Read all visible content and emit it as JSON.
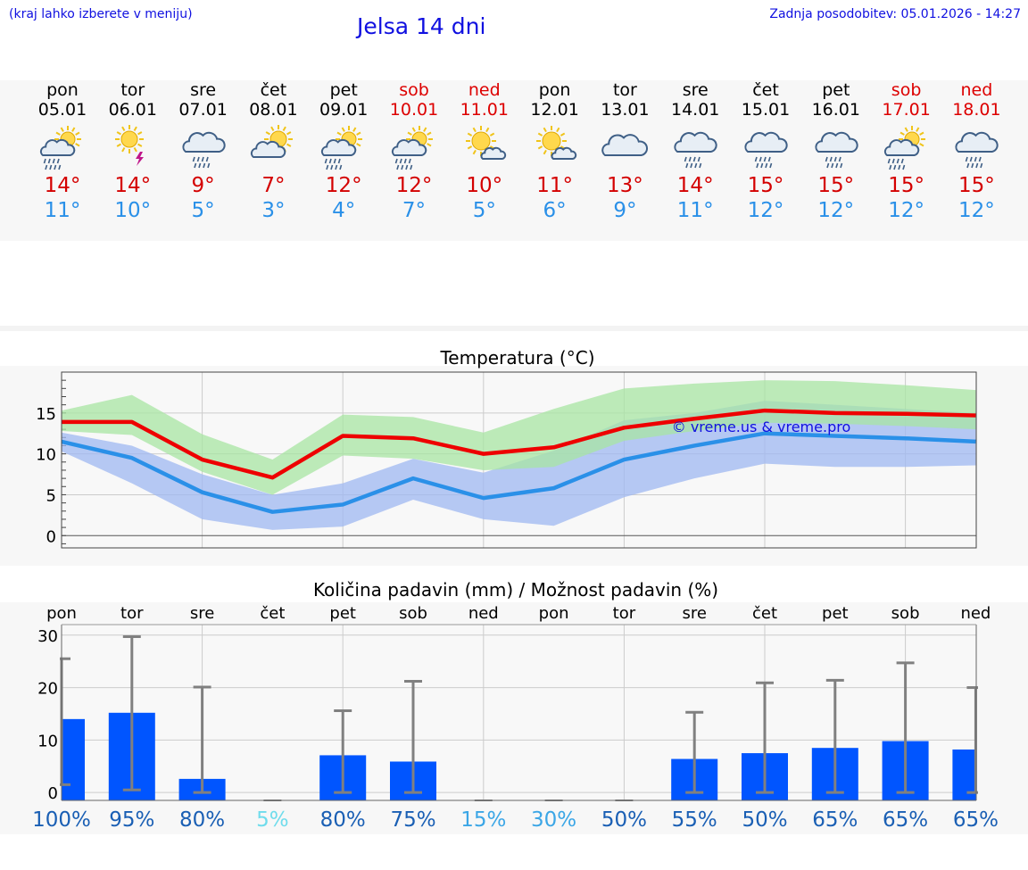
{
  "header": {
    "hint": "(kraj lahko izberete v meniju)",
    "title": "Jelsa 14 dni",
    "updated": "Zadnja posodobitev: 05.01.2026 - 14:27"
  },
  "forecast": [
    {
      "day": "pon",
      "date": "05.01",
      "weekend": false,
      "icon": "sun-cloud-rain-icon",
      "max": "14°",
      "min": "11°"
    },
    {
      "day": "tor",
      "date": "06.01",
      "weekend": false,
      "icon": "sun-thunder-icon",
      "max": "14°",
      "min": "10°"
    },
    {
      "day": "sre",
      "date": "07.01",
      "weekend": false,
      "icon": "cloud-rain-icon",
      "max": "9°",
      "min": "5°"
    },
    {
      "day": "čet",
      "date": "08.01",
      "weekend": false,
      "icon": "sun-cloud-icon",
      "max": "7°",
      "min": "3°"
    },
    {
      "day": "pet",
      "date": "09.01",
      "weekend": false,
      "icon": "sun-cloud-rain-icon",
      "max": "12°",
      "min": "4°"
    },
    {
      "day": "sob",
      "date": "10.01",
      "weekend": true,
      "icon": "sun-cloud-rain-icon",
      "max": "12°",
      "min": "7°"
    },
    {
      "day": "ned",
      "date": "11.01",
      "weekend": true,
      "icon": "sun-small-cloud-icon",
      "max": "10°",
      "min": "5°"
    },
    {
      "day": "pon",
      "date": "12.01",
      "weekend": false,
      "icon": "sun-small-cloud-icon",
      "max": "11°",
      "min": "6°"
    },
    {
      "day": "tor",
      "date": "13.01",
      "weekend": false,
      "icon": "cloud-icon",
      "max": "13°",
      "min": "9°"
    },
    {
      "day": "sre",
      "date": "14.01",
      "weekend": false,
      "icon": "cloud-rain-icon",
      "max": "14°",
      "min": "11°"
    },
    {
      "day": "čet",
      "date": "15.01",
      "weekend": false,
      "icon": "cloud-rain-icon",
      "max": "15°",
      "min": "12°"
    },
    {
      "day": "pet",
      "date": "16.01",
      "weekend": false,
      "icon": "cloud-rain-icon",
      "max": "15°",
      "min": "12°"
    },
    {
      "day": "sob",
      "date": "17.01",
      "weekend": true,
      "icon": "sun-cloud-rain-icon",
      "max": "15°",
      "min": "12°"
    },
    {
      "day": "ned",
      "date": "18.01",
      "weekend": true,
      "icon": "cloud-rain-icon",
      "max": "15°",
      "min": "12°"
    }
  ],
  "colors": {
    "max": "#ee0000",
    "min": "#2a90e8",
    "max_band": "#a8e6a3",
    "min_band": "#9fb8f2",
    "bar": "#0055ff",
    "error": "#808080"
  },
  "chart_data": [
    {
      "type": "line",
      "title": "Temperatura (°C)",
      "watermark": "© vreme.us & vreme.pro",
      "ylim": [
        -1.5,
        20
      ],
      "yticks": [
        0,
        5,
        10,
        15
      ],
      "x": [
        0,
        1,
        2,
        3,
        4,
        5,
        6,
        7,
        8,
        9,
        10,
        11,
        12,
        13
      ],
      "series": [
        {
          "name": "max",
          "values": [
            13.9,
            13.9,
            9.3,
            7.1,
            12.2,
            11.9,
            10.0,
            10.8,
            13.2,
            14.3,
            15.3,
            15.0,
            14.9,
            14.7
          ],
          "band_low": [
            12.8,
            12.3,
            7.8,
            5.0,
            9.8,
            9.4,
            8.0,
            8.4,
            11.6,
            12.8,
            13.8,
            13.7,
            13.4,
            13.0
          ],
          "band_high": [
            15.3,
            17.2,
            12.4,
            9.3,
            14.8,
            14.5,
            12.6,
            15.5,
            18.0,
            18.6,
            19.0,
            18.9,
            18.4,
            17.8
          ]
        },
        {
          "name": "min",
          "values": [
            11.5,
            9.5,
            5.3,
            2.9,
            3.8,
            7.0,
            4.6,
            5.8,
            9.3,
            11.0,
            12.5,
            12.2,
            11.9,
            11.5
          ],
          "band_low": [
            10.3,
            6.4,
            2.0,
            0.7,
            1.1,
            4.4,
            2.0,
            1.2,
            4.7,
            7.0,
            8.8,
            8.4,
            8.4,
            8.6
          ],
          "band_high": [
            12.6,
            11.0,
            7.5,
            5.0,
            6.4,
            9.4,
            7.7,
            10.4,
            14.1,
            15.0,
            16.5,
            16.0,
            15.5,
            15.0
          ]
        }
      ]
    },
    {
      "type": "bar",
      "title": "Količina padavin (mm) / Možnost padavin (%)",
      "categories": [
        "pon",
        "tor",
        "sre",
        "čet",
        "pet",
        "sob",
        "ned",
        "pon",
        "tor",
        "sre",
        "čet",
        "pet",
        "sob",
        "ned"
      ],
      "ylim": [
        -1.5,
        32
      ],
      "yticks": [
        0,
        10,
        20,
        30
      ],
      "values": [
        14.0,
        15.2,
        2.6,
        0,
        7.1,
        5.9,
        0,
        0,
        0,
        6.4,
        7.5,
        8.5,
        9.8,
        8.2
      ],
      "error_low": [
        1.5,
        0.5,
        0,
        0,
        0,
        0,
        0,
        0,
        0,
        0,
        0,
        0,
        0,
        0
      ],
      "error_high": [
        25.5,
        29.7,
        20.1,
        0,
        15.6,
        21.2,
        0,
        0,
        0,
        15.3,
        20.9,
        21.4,
        24.7,
        20.0
      ],
      "probability": [
        "100%",
        "95%",
        "80%",
        "5%",
        "80%",
        "75%",
        "15%",
        "30%",
        "50%",
        "55%",
        "50%",
        "65%",
        "65%",
        "65%"
      ],
      "probability_colors": [
        "#1a5fb4",
        "#1a5fb4",
        "#1a5fb4",
        "#6fdcec",
        "#1a5fb4",
        "#1a5fb4",
        "#3ba6e6",
        "#3ba6e6",
        "#1a5fb4",
        "#1a5fb4",
        "#1a5fb4",
        "#1a5fb4",
        "#1a5fb4",
        "#1a5fb4"
      ]
    }
  ]
}
